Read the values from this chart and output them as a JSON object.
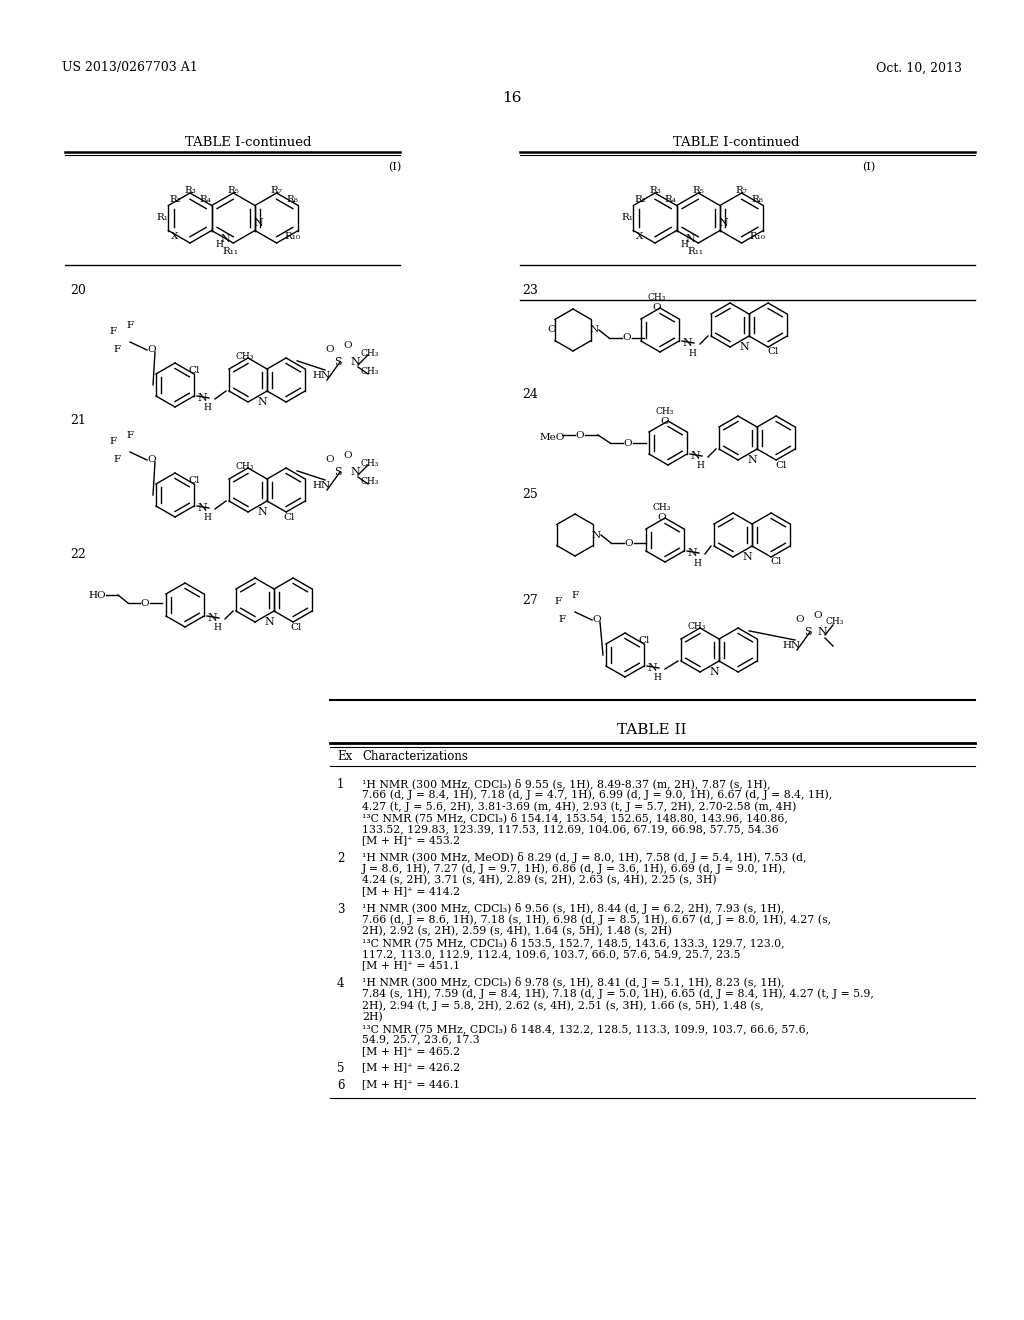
{
  "patent_num": "US 2013/0267703 A1",
  "patent_date": "Oct. 10, 2013",
  "page_num": "16",
  "bg_color": "#ffffff",
  "nmr_data": [
    {
      "ex": "1",
      "superscript_h": "1",
      "superscript_c": "13",
      "lines": [
        "¹H NMR (300 MHz, CDCl₃) δ 9.55 (s, 1H), 8.49-8.37 (m, 2H), 7.87 (s, 1H),",
        "7.66 (d, J = 8.4, 1H), 7.18 (d, J = 4.7, 1H), 6.99 (d, J = 9.0, 1H), 6.67 (d, J = 8.4, 1H),",
        "4.27 (t, J = 5.6, 2H), 3.81-3.69 (m, 4H), 2.93 (t, J = 5.7, 2H), 2.70-2.58 (m, 4H)",
        "¹³C NMR (75 MHz, CDCl₃) δ 154.14, 153.54, 152.65, 148.80, 143.96, 140.86,",
        "133.52, 129.83, 123.39, 117.53, 112.69, 104.06, 67.19, 66.98, 57.75, 54.36",
        "[M + H]⁺ = 453.2"
      ]
    },
    {
      "ex": "2",
      "lines": [
        "¹H NMR (300 MHz, MeOD) δ 8.29 (d, J = 8.0, 1H), 7.58 (d, J = 5.4, 1H), 7.53 (d,",
        "J = 8.6, 1H), 7.27 (d, J = 9.7, 1H), 6.86 (d, J = 3.6, 1H), 6.69 (d, J = 9.0, 1H),",
        "4.24 (s, 2H), 3.71 (s, 4H), 2.89 (s, 2H), 2.63 (s, 4H), 2.25 (s, 3H)",
        "[M + H]⁺ = 414.2"
      ]
    },
    {
      "ex": "3",
      "lines": [
        "¹H NMR (300 MHz, CDCl₃) δ 9.56 (s, 1H), 8.44 (d, J = 6.2, 2H), 7.93 (s, 1H),",
        "7.66 (d, J = 8.6, 1H), 7.18 (s, 1H), 6.98 (d, J = 8.5, 1H), 6.67 (d, J = 8.0, 1H), 4.27 (s,",
        "2H), 2.92 (s, 2H), 2.59 (s, 4H), 1.64 (s, 5H), 1.48 (s, 2H)",
        "¹³C NMR (75 MHz, CDCl₃) δ 153.5, 152.7, 148.5, 143.6, 133.3, 129.7, 123.0,",
        "117.2, 113.0, 112.9, 112.4, 109.6, 103.7, 66.0, 57.6, 54.9, 25.7, 23.5",
        "[M + H]⁺ = 451.1"
      ]
    },
    {
      "ex": "4",
      "lines": [
        "¹H NMR (300 MHz, CDCl₃) δ 9.78 (s, 1H), 8.41 (d, J = 5.1, 1H), 8.23 (s, 1H),",
        "7.84 (s, 1H), 7.59 (d, J = 8.4, 1H), 7.18 (d, J = 5.0, 1H), 6.65 (d, J = 8.4, 1H), 4.27 (t, J = 5.9,",
        "2H), 2.94 (t, J = 5.8, 2H), 2.62 (s, 4H), 2.51 (s, 3H), 1.66 (s, 5H), 1.48 (s,",
        "2H)",
        "¹³C NMR (75 MHz, CDCl₃) δ 148.4, 132.2, 128.5, 113.3, 109.9, 103.7, 66.6, 57.6,",
        "54.9, 25.7, 23.6, 17.3",
        "[M + H]⁺ = 465.2"
      ]
    },
    {
      "ex": "5",
      "lines": [
        "[M + H]⁺ = 426.2"
      ]
    },
    {
      "ex": "6",
      "lines": [
        "[M + H]⁺ = 446.1"
      ]
    }
  ]
}
